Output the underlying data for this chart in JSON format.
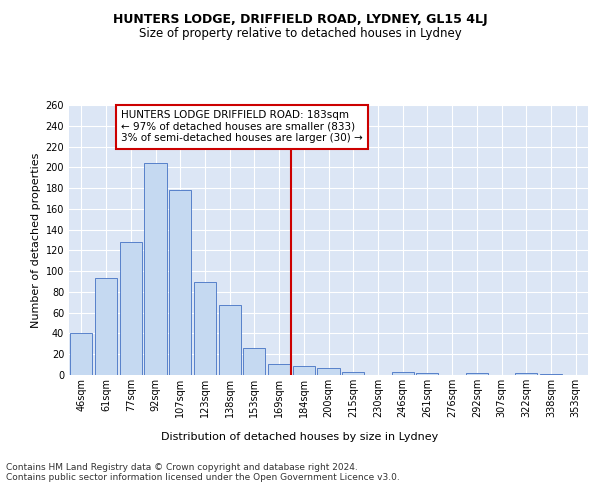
{
  "title": "HUNTERS LODGE, DRIFFIELD ROAD, LYDNEY, GL15 4LJ",
  "subtitle": "Size of property relative to detached houses in Lydney",
  "xlabel": "Distribution of detached houses by size in Lydney",
  "ylabel": "Number of detached properties",
  "categories": [
    "46sqm",
    "61sqm",
    "77sqm",
    "92sqm",
    "107sqm",
    "123sqm",
    "138sqm",
    "153sqm",
    "169sqm",
    "184sqm",
    "200sqm",
    "215sqm",
    "230sqm",
    "246sqm",
    "261sqm",
    "276sqm",
    "292sqm",
    "307sqm",
    "322sqm",
    "338sqm",
    "353sqm"
  ],
  "values": [
    40,
    93,
    128,
    204,
    178,
    90,
    67,
    26,
    11,
    9,
    7,
    3,
    0,
    3,
    2,
    0,
    2,
    0,
    2,
    1,
    0
  ],
  "bar_color": "#c5d9f1",
  "bar_edge_color": "#4472c4",
  "vline_x_index": 9,
  "vline_color": "#cc0000",
  "annotation_text": "HUNTERS LODGE DRIFFIELD ROAD: 183sqm\n← 97% of detached houses are smaller (833)\n3% of semi-detached houses are larger (30) →",
  "annotation_box_color": "#cc0000",
  "ylim": [
    0,
    260
  ],
  "yticks": [
    0,
    20,
    40,
    60,
    80,
    100,
    120,
    140,
    160,
    180,
    200,
    220,
    240,
    260
  ],
  "background_color": "#dce6f5",
  "grid_color": "#ffffff",
  "footer_text": "Contains HM Land Registry data © Crown copyright and database right 2024.\nContains public sector information licensed under the Open Government Licence v3.0.",
  "title_fontsize": 9,
  "subtitle_fontsize": 8.5,
  "axis_label_fontsize": 8,
  "tick_fontsize": 7,
  "footer_fontsize": 6.5,
  "ann_fontsize": 7.5
}
